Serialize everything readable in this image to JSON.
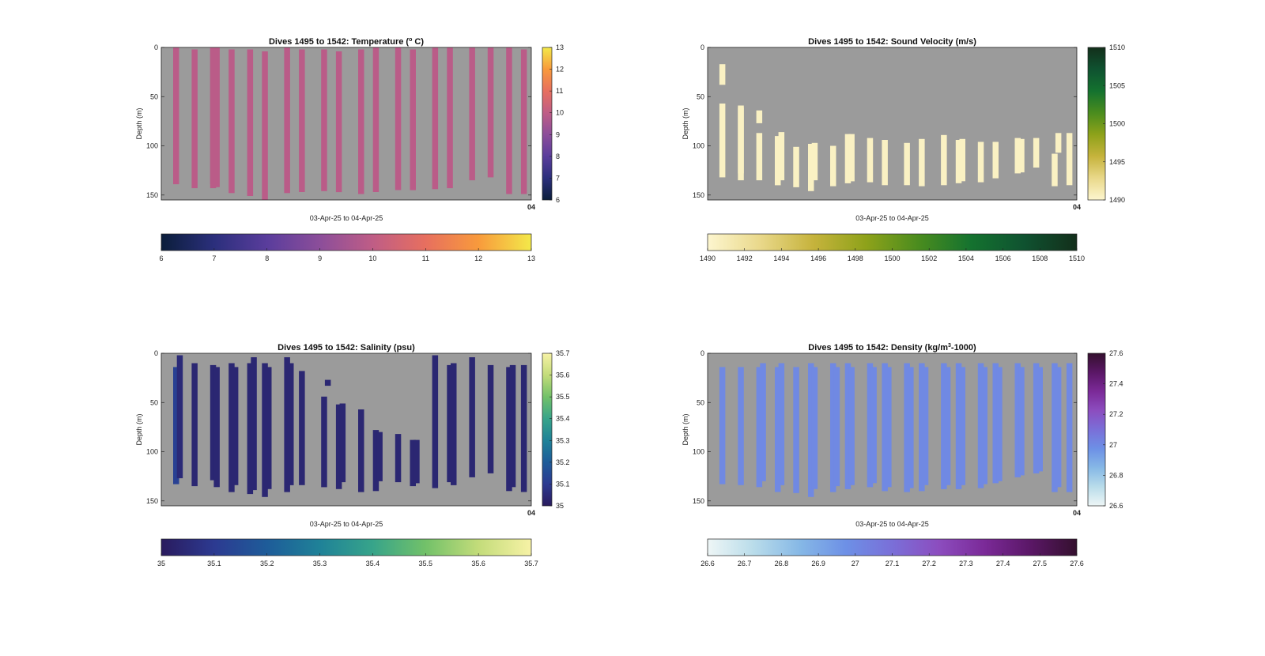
{
  "chart_data": [
    {
      "type": "heatmap",
      "title_main": "Dives 1495 to 1542: Temperature (",
      "title_sup": "o",
      "title_end": " C)",
      "xlabel": "03-Apr-25 to 04-Apr-25",
      "ylabel": "Depth (m)",
      "x_end_label": "04",
      "yticks": [
        0,
        50,
        100,
        150
      ],
      "ylim": [
        0,
        155
      ],
      "colorbar": {
        "min": 6,
        "max": 13,
        "ticks": [
          6,
          7,
          8,
          9,
          10,
          11,
          12,
          13
        ],
        "colors": [
          "#0b1e3b",
          "#2b2f7c",
          "#5a3d9c",
          "#8c4e9a",
          "#bf5d86",
          "#e76f5f",
          "#f89a3c",
          "#f3e94a"
        ]
      },
      "profiles": [
        {
          "x": 0.04,
          "top": 0,
          "bottom": 139,
          "value": 9.9
        },
        {
          "x": 0.09,
          "top": 2,
          "bottom": 143,
          "value": 9.9
        },
        {
          "x": 0.14,
          "top": 0,
          "bottom": 139,
          "value": 9.9
        },
        {
          "x": 0.15,
          "top": 0,
          "bottom": 142,
          "value": 9.9
        },
        {
          "x": 0.14,
          "top": 0,
          "bottom": 143,
          "value": 9.9
        },
        {
          "x": 0.19,
          "top": 2,
          "bottom": 148,
          "value": 9.9
        },
        {
          "x": 0.24,
          "top": 2,
          "bottom": 151,
          "value": 9.9
        },
        {
          "x": 0.28,
          "top": 4,
          "bottom": 155,
          "value": 9.9
        },
        {
          "x": 0.34,
          "top": 0,
          "bottom": 148,
          "value": 9.9
        },
        {
          "x": 0.38,
          "top": 2,
          "bottom": 147,
          "value": 9.9
        },
        {
          "x": 0.44,
          "top": 2,
          "bottom": 146,
          "value": 9.9
        },
        {
          "x": 0.48,
          "top": 4,
          "bottom": 147,
          "value": 9.9
        },
        {
          "x": 0.54,
          "top": 2,
          "bottom": 149,
          "value": 9.9
        },
        {
          "x": 0.58,
          "top": 0,
          "bottom": 147,
          "value": 9.9
        },
        {
          "x": 0.64,
          "top": 0,
          "bottom": 145,
          "value": 9.9
        },
        {
          "x": 0.68,
          "top": 2,
          "bottom": 145,
          "value": 9.9
        },
        {
          "x": 0.74,
          "top": 0,
          "bottom": 144,
          "value": 9.9
        },
        {
          "x": 0.78,
          "top": 0,
          "bottom": 143,
          "value": 9.9
        },
        {
          "x": 0.84,
          "top": 0,
          "bottom": 135,
          "value": 9.9
        },
        {
          "x": 0.89,
          "top": 0,
          "bottom": 132,
          "value": 9.9
        },
        {
          "x": 0.94,
          "top": 0,
          "bottom": 149,
          "value": 9.9
        },
        {
          "x": 0.98,
          "top": 2,
          "bottom": 149,
          "value": 9.9
        }
      ]
    },
    {
      "type": "heatmap",
      "title_main": "Dives 1495 to 1542: Sound Velocity (m/s)",
      "title_sup": "",
      "title_end": "",
      "xlabel": "03-Apr-25 to 04-Apr-25",
      "ylabel": "Depth (m)",
      "x_end_label": "04",
      "yticks": [
        0,
        50,
        100,
        150
      ],
      "ylim": [
        0,
        155
      ],
      "colorbar": {
        "min": 1490,
        "max": 1510,
        "ticks": [
          1490,
          1492,
          1494,
          1496,
          1498,
          1500,
          1502,
          1504,
          1506,
          1508,
          1510
        ],
        "side_ticks": [
          1490,
          1495,
          1500,
          1505,
          1510
        ],
        "colors": [
          "#fdf6cf",
          "#e9d88a",
          "#c6b33c",
          "#8ea21a",
          "#4a8c1e",
          "#14722f",
          "#0f5230",
          "#132f1b"
        ]
      },
      "profiles": [
        {
          "x": 0.04,
          "top": 17,
          "bottom": 38,
          "value": 1490.5
        },
        {
          "x": 0.04,
          "top": 57,
          "bottom": 132,
          "value": 1490.5
        },
        {
          "x": 0.09,
          "top": 61,
          "bottom": 135,
          "value": 1490.5
        },
        {
          "x": 0.09,
          "top": 59,
          "bottom": 128,
          "value": 1490.5
        },
        {
          "x": 0.14,
          "top": 64,
          "bottom": 77,
          "value": 1490.5
        },
        {
          "x": 0.14,
          "top": 87,
          "bottom": 135,
          "value": 1490.5
        },
        {
          "x": 0.19,
          "top": 90,
          "bottom": 140,
          "value": 1490.5
        },
        {
          "x": 0.2,
          "top": 86,
          "bottom": 135,
          "value": 1490.5
        },
        {
          "x": 0.24,
          "top": 101,
          "bottom": 142,
          "value": 1490.5
        },
        {
          "x": 0.28,
          "top": 98,
          "bottom": 146,
          "value": 1490.5
        },
        {
          "x": 0.29,
          "top": 97,
          "bottom": 135,
          "value": 1490.5
        },
        {
          "x": 0.34,
          "top": 100,
          "bottom": 141,
          "value": 1490.5
        },
        {
          "x": 0.38,
          "top": 88,
          "bottom": 138,
          "value": 1490.5
        },
        {
          "x": 0.39,
          "top": 88,
          "bottom": 136,
          "value": 1490.5
        },
        {
          "x": 0.44,
          "top": 92,
          "bottom": 137,
          "value": 1490.5
        },
        {
          "x": 0.48,
          "top": 94,
          "bottom": 140,
          "value": 1490.5
        },
        {
          "x": 0.54,
          "top": 97,
          "bottom": 140,
          "value": 1490.5
        },
        {
          "x": 0.58,
          "top": 93,
          "bottom": 141,
          "value": 1490.5
        },
        {
          "x": 0.64,
          "top": 89,
          "bottom": 140,
          "value": 1490.5
        },
        {
          "x": 0.68,
          "top": 94,
          "bottom": 138,
          "value": 1490.5
        },
        {
          "x": 0.69,
          "top": 93,
          "bottom": 136,
          "value": 1490.5
        },
        {
          "x": 0.74,
          "top": 96,
          "bottom": 137,
          "value": 1490.5
        },
        {
          "x": 0.78,
          "top": 96,
          "bottom": 133,
          "value": 1490.5
        },
        {
          "x": 0.84,
          "top": 92,
          "bottom": 128,
          "value": 1490.5
        },
        {
          "x": 0.85,
          "top": 93,
          "bottom": 127,
          "value": 1490.5
        },
        {
          "x": 0.89,
          "top": 92,
          "bottom": 122,
          "value": 1490.5
        },
        {
          "x": 0.94,
          "top": 108,
          "bottom": 141,
          "value": 1490.5
        },
        {
          "x": 0.95,
          "top": 87,
          "bottom": 107,
          "value": 1490.5
        },
        {
          "x": 0.98,
          "top": 87,
          "bottom": 140,
          "value": 1490.5
        }
      ]
    },
    {
      "type": "heatmap",
      "title_main": "Dives 1495 to 1542: Salinity (psu)",
      "title_sup": "",
      "title_end": "",
      "xlabel": "03-Apr-25 to 04-Apr-25",
      "ylabel": "Depth (m)",
      "x_end_label": "04",
      "yticks": [
        0,
        50,
        100,
        150
      ],
      "ylim": [
        0,
        155
      ],
      "colorbar": {
        "min": 35,
        "max": 35.7,
        "ticks": [
          35,
          35.1,
          35.2,
          35.3,
          35.4,
          35.5,
          35.6,
          35.7
        ],
        "colors": [
          "#2a1b5e",
          "#2c3a91",
          "#1e5c99",
          "#1f8298",
          "#37a48a",
          "#72c169",
          "#c3dc7a",
          "#f7f2a6"
        ]
      },
      "profiles": [
        {
          "x": 0.04,
          "top": 14,
          "bottom": 133,
          "value": 35.12
        },
        {
          "x": 0.05,
          "top": 2,
          "bottom": 127,
          "value": 35.05
        },
        {
          "x": 0.09,
          "top": 10,
          "bottom": 135,
          "value": 35.04
        },
        {
          "x": 0.14,
          "top": 12,
          "bottom": 129,
          "value": 35.04
        },
        {
          "x": 0.15,
          "top": 14,
          "bottom": 136,
          "value": 35.04
        },
        {
          "x": 0.19,
          "top": 10,
          "bottom": 141,
          "value": 35.04
        },
        {
          "x": 0.2,
          "top": 14,
          "bottom": 134,
          "value": 35.04
        },
        {
          "x": 0.24,
          "top": 10,
          "bottom": 143,
          "value": 35.04
        },
        {
          "x": 0.25,
          "top": 4,
          "bottom": 139,
          "value": 35.04
        },
        {
          "x": 0.28,
          "top": 10,
          "bottom": 146,
          "value": 35.04
        },
        {
          "x": 0.29,
          "top": 14,
          "bottom": 138,
          "value": 35.04
        },
        {
          "x": 0.34,
          "top": 4,
          "bottom": 141,
          "value": 35.04
        },
        {
          "x": 0.35,
          "top": 10,
          "bottom": 134,
          "value": 35.04
        },
        {
          "x": 0.38,
          "top": 18,
          "bottom": 134,
          "value": 35.04
        },
        {
          "x": 0.44,
          "top": 44,
          "bottom": 136,
          "value": 35.04
        },
        {
          "x": 0.45,
          "top": 27,
          "bottom": 33,
          "value": 35.04
        },
        {
          "x": 0.48,
          "top": 52,
          "bottom": 138,
          "value": 35.04
        },
        {
          "x": 0.49,
          "top": 51,
          "bottom": 131,
          "value": 35.04
        },
        {
          "x": 0.54,
          "top": 57,
          "bottom": 141,
          "value": 35.04
        },
        {
          "x": 0.58,
          "top": 78,
          "bottom": 140,
          "value": 35.04
        },
        {
          "x": 0.59,
          "top": 80,
          "bottom": 130,
          "value": 35.04
        },
        {
          "x": 0.64,
          "top": 82,
          "bottom": 131,
          "value": 35.04
        },
        {
          "x": 0.68,
          "top": 88,
          "bottom": 135,
          "value": 35.04
        },
        {
          "x": 0.69,
          "top": 88,
          "bottom": 132,
          "value": 35.04
        },
        {
          "x": 0.74,
          "top": 2,
          "bottom": 137,
          "value": 35.04
        },
        {
          "x": 0.78,
          "top": 12,
          "bottom": 131,
          "value": 35.04
        },
        {
          "x": 0.79,
          "top": 10,
          "bottom": 134,
          "value": 35.04
        },
        {
          "x": 0.84,
          "top": 4,
          "bottom": 126,
          "value": 35.04
        },
        {
          "x": 0.89,
          "top": 12,
          "bottom": 122,
          "value": 35.04
        },
        {
          "x": 0.94,
          "top": 14,
          "bottom": 140,
          "value": 35.04
        },
        {
          "x": 0.95,
          "top": 12,
          "bottom": 136,
          "value": 35.04
        },
        {
          "x": 0.98,
          "top": 12,
          "bottom": 141,
          "value": 35.04
        }
      ]
    },
    {
      "type": "heatmap",
      "title_main": "Dives 1495 to 1542: Density (kg/m",
      "title_sup": "3",
      "title_end": "-1000)",
      "xlabel": "03-Apr-25 to 04-Apr-25",
      "ylabel": "Depth (m)",
      "x_end_label": "04",
      "yticks": [
        0,
        50,
        100,
        150
      ],
      "ylim": [
        0,
        155
      ],
      "colorbar": {
        "min": 26.6,
        "max": 27.6,
        "ticks": [
          26.6,
          26.7,
          26.8,
          26.9,
          27,
          27.1,
          27.2,
          27.3,
          27.4,
          27.5,
          27.6
        ],
        "side_ticks": [
          26.6,
          26.8,
          27,
          27.2,
          27.4,
          27.6
        ],
        "colors": [
          "#eef6f6",
          "#b9dcea",
          "#86b8e6",
          "#6d90e6",
          "#7a6fd8",
          "#8c4dbf",
          "#7b2a98",
          "#5a1766",
          "#34102e"
        ]
      },
      "profiles": [
        {
          "x": 0.04,
          "top": 14,
          "bottom": 133,
          "value": 27.0
        },
        {
          "x": 0.09,
          "top": 14,
          "bottom": 134,
          "value": 27.0
        },
        {
          "x": 0.14,
          "top": 14,
          "bottom": 136,
          "value": 27.0
        },
        {
          "x": 0.15,
          "top": 10,
          "bottom": 130,
          "value": 27.0
        },
        {
          "x": 0.19,
          "top": 14,
          "bottom": 141,
          "value": 27.0
        },
        {
          "x": 0.2,
          "top": 10,
          "bottom": 134,
          "value": 27.0
        },
        {
          "x": 0.24,
          "top": 14,
          "bottom": 142,
          "value": 27.0
        },
        {
          "x": 0.28,
          "top": 10,
          "bottom": 146,
          "value": 27.0
        },
        {
          "x": 0.29,
          "top": 14,
          "bottom": 138,
          "value": 27.0
        },
        {
          "x": 0.34,
          "top": 10,
          "bottom": 141,
          "value": 27.0
        },
        {
          "x": 0.35,
          "top": 14,
          "bottom": 135,
          "value": 27.0
        },
        {
          "x": 0.38,
          "top": 10,
          "bottom": 138,
          "value": 27.0
        },
        {
          "x": 0.39,
          "top": 14,
          "bottom": 134,
          "value": 27.0
        },
        {
          "x": 0.44,
          "top": 10,
          "bottom": 136,
          "value": 27.0
        },
        {
          "x": 0.45,
          "top": 14,
          "bottom": 132,
          "value": 27.0
        },
        {
          "x": 0.48,
          "top": 10,
          "bottom": 140,
          "value": 27.0
        },
        {
          "x": 0.49,
          "top": 14,
          "bottom": 136,
          "value": 27.0
        },
        {
          "x": 0.54,
          "top": 10,
          "bottom": 141,
          "value": 27.0
        },
        {
          "x": 0.55,
          "top": 14,
          "bottom": 137,
          "value": 27.0
        },
        {
          "x": 0.58,
          "top": 10,
          "bottom": 140,
          "value": 27.0
        },
        {
          "x": 0.59,
          "top": 14,
          "bottom": 134,
          "value": 27.0
        },
        {
          "x": 0.64,
          "top": 10,
          "bottom": 138,
          "value": 27.0
        },
        {
          "x": 0.65,
          "top": 14,
          "bottom": 134,
          "value": 27.0
        },
        {
          "x": 0.68,
          "top": 10,
          "bottom": 138,
          "value": 27.0
        },
        {
          "x": 0.69,
          "top": 14,
          "bottom": 134,
          "value": 27.0
        },
        {
          "x": 0.74,
          "top": 10,
          "bottom": 137,
          "value": 27.0
        },
        {
          "x": 0.75,
          "top": 14,
          "bottom": 133,
          "value": 27.0
        },
        {
          "x": 0.78,
          "top": 10,
          "bottom": 132,
          "value": 27.0
        },
        {
          "x": 0.79,
          "top": 14,
          "bottom": 130,
          "value": 27.0
        },
        {
          "x": 0.84,
          "top": 10,
          "bottom": 126,
          "value": 27.0
        },
        {
          "x": 0.85,
          "top": 14,
          "bottom": 124,
          "value": 27.0
        },
        {
          "x": 0.89,
          "top": 10,
          "bottom": 122,
          "value": 27.0
        },
        {
          "x": 0.9,
          "top": 14,
          "bottom": 120,
          "value": 27.0
        },
        {
          "x": 0.94,
          "top": 10,
          "bottom": 141,
          "value": 27.0
        },
        {
          "x": 0.95,
          "top": 14,
          "bottom": 136,
          "value": 27.0
        },
        {
          "x": 0.98,
          "top": 10,
          "bottom": 141,
          "value": 27.0
        }
      ]
    }
  ]
}
